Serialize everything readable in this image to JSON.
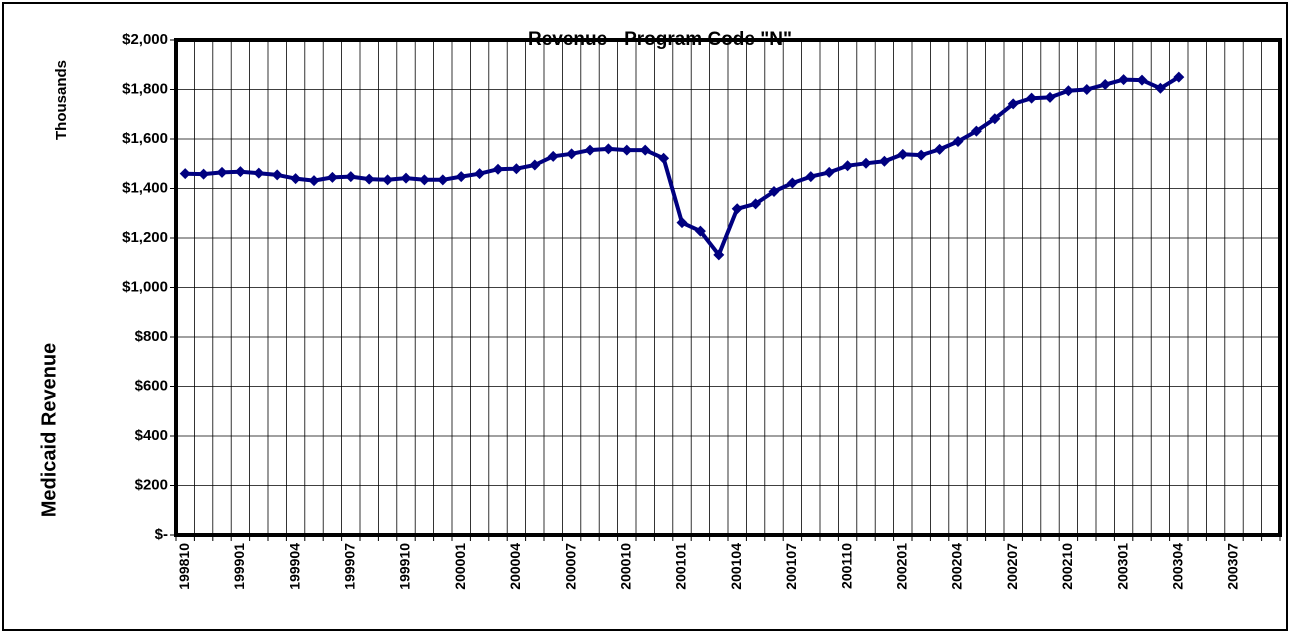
{
  "chart_data": {
    "type": "line",
    "title": "Revenue - Program Code \"N\"",
    "y_label": "Medicaid Revenue",
    "y_unit_label": "Thousands",
    "categories": [
      "199810",
      null,
      null,
      "199901",
      null,
      null,
      "199904",
      null,
      null,
      "199907",
      null,
      null,
      "199910",
      null,
      null,
      "200001",
      null,
      null,
      "200004",
      null,
      null,
      "200007",
      null,
      null,
      "200010",
      null,
      null,
      "200101",
      null,
      null,
      "200104",
      null,
      null,
      "200107",
      null,
      null,
      "200110",
      null,
      null,
      "200201",
      null,
      null,
      "200204",
      null,
      null,
      "200207",
      null,
      null,
      "200210",
      null,
      null,
      "200301",
      null,
      null,
      "200304",
      null,
      null,
      "200307",
      null,
      null
    ],
    "series": [
      {
        "name": "Revenue",
        "color": "#000080",
        "values": [
          1460,
          1458,
          1465,
          1468,
          1462,
          1455,
          1440,
          1432,
          1445,
          1448,
          1438,
          1435,
          1442,
          1435,
          1435,
          1448,
          1460,
          1478,
          1480,
          1495,
          1530,
          1540,
          1555,
          1560,
          1555,
          1555,
          1522,
          1262,
          1228,
          1132,
          1318,
          1338,
          1388,
          1422,
          1448,
          1465,
          1492,
          1502,
          1510,
          1538,
          1535,
          1558,
          1590,
          1632,
          1682,
          1742,
          1765,
          1768,
          1795,
          1800,
          1820,
          1840,
          1838,
          1805,
          1850,
          null,
          null,
          null,
          null,
          null
        ]
      }
    ],
    "ylim": [
      0,
      2000
    ],
    "yticks": [
      {
        "value": 0,
        "label": "$-"
      },
      {
        "value": 200,
        "label": "$200"
      },
      {
        "value": 400,
        "label": "$400"
      },
      {
        "value": 600,
        "label": "$600"
      },
      {
        "value": 800,
        "label": "$800"
      },
      {
        "value": 1000,
        "label": "$1,000"
      },
      {
        "value": 1200,
        "label": "$1,200"
      },
      {
        "value": 1400,
        "label": "$1,400"
      },
      {
        "value": 1600,
        "label": "$1,600"
      },
      {
        "value": 1800,
        "label": "$1,800"
      },
      {
        "value": 2000,
        "label": "$2,000"
      }
    ],
    "grid": true
  }
}
